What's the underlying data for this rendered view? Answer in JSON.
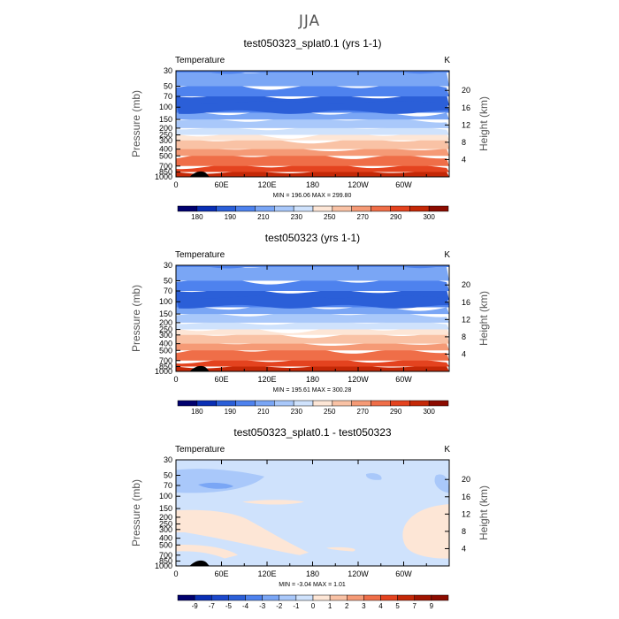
{
  "page_title": "JJA",
  "chart_data": [
    {
      "type": "heatmap",
      "title": "test050323_splat0.1 (yrs 1-1)",
      "left_label": "Temperature",
      "right_label": "K",
      "ylabel": "Pressure (mb)",
      "y2label": "Height (km)",
      "xticks": [
        "0",
        "60E",
        "120E",
        "180",
        "120W",
        "60W"
      ],
      "xtick_lon": [
        0,
        60,
        120,
        180,
        240,
        300
      ],
      "xlim": [
        0,
        360
      ],
      "yticks": [
        "30",
        "50",
        "70",
        "100",
        "150",
        "200",
        "250",
        "300",
        "400",
        "500",
        "700",
        "850",
        "1000"
      ],
      "ytick_values": [
        30,
        50,
        70,
        100,
        150,
        200,
        250,
        300,
        400,
        500,
        700,
        850,
        1000
      ],
      "ylim": [
        1000,
        30
      ],
      "y_scale": "log",
      "y2ticks": [
        "4",
        "8",
        "12",
        "16",
        "20"
      ],
      "y2_values": [
        4,
        8,
        12,
        16,
        20
      ],
      "stats_text": "MIN = 196.06   MAX = 299.80",
      "min": 196.06,
      "max": 299.8,
      "colorbar_labels": [
        "180",
        "190",
        "210",
        "230",
        "250",
        "270",
        "290",
        "300"
      ],
      "colorbar_colors": [
        "#01016e",
        "#0a2fb4",
        "#2b5fd8",
        "#4e82ee",
        "#7aa6f5",
        "#a9c8fa",
        "#cfe2fc",
        "#fde6d6",
        "#f9c2a5",
        "#f59a76",
        "#ef6e48",
        "#e4431f",
        "#c42807",
        "#8c0b00"
      ],
      "field_variant": "control",
      "levels_bottom_up": [
        {
          "p": 1000,
          "c": "#c42807"
        },
        {
          "p": 850,
          "c": "#e4431f"
        },
        {
          "p": 700,
          "c": "#ef6e48"
        },
        {
          "p": 500,
          "c": "#f59a76"
        },
        {
          "p": 400,
          "c": "#f9c2a5"
        },
        {
          "p": 300,
          "c": "#fde6d6"
        },
        {
          "p": 250,
          "c": "#cfe2fc"
        },
        {
          "p": 200,
          "c": "#a9c8fa"
        },
        {
          "p": 150,
          "c": "#7aa6f5"
        },
        {
          "p": 120,
          "c": "#4e82ee"
        },
        {
          "p": 95,
          "c": "#2b5fd8"
        },
        {
          "p": 70,
          "c": "#4e82ee"
        },
        {
          "p": 50,
          "c": "#7aa6f5"
        },
        {
          "p": 30,
          "c": "#4e82ee"
        }
      ]
    },
    {
      "type": "heatmap",
      "title": "test050323 (yrs 1-1)",
      "left_label": "Temperature",
      "right_label": "K",
      "ylabel": "Pressure (mb)",
      "y2label": "Height (km)",
      "xticks": [
        "0",
        "60E",
        "120E",
        "180",
        "120W",
        "60W"
      ],
      "xtick_lon": [
        0,
        60,
        120,
        180,
        240,
        300
      ],
      "xlim": [
        0,
        360
      ],
      "yticks": [
        "30",
        "50",
        "70",
        "100",
        "150",
        "200",
        "250",
        "300",
        "400",
        "500",
        "700",
        "850",
        "1000"
      ],
      "ytick_values": [
        30,
        50,
        70,
        100,
        150,
        200,
        250,
        300,
        400,
        500,
        700,
        850,
        1000
      ],
      "ylim": [
        1000,
        30
      ],
      "y_scale": "log",
      "y2ticks": [
        "4",
        "8",
        "12",
        "16",
        "20"
      ],
      "y2_values": [
        4,
        8,
        12,
        16,
        20
      ],
      "stats_text": "MIN = 195.61   MAX = 300.28",
      "min": 195.61,
      "max": 300.28,
      "colorbar_labels": [
        "180",
        "190",
        "210",
        "230",
        "250",
        "270",
        "290",
        "300"
      ],
      "colorbar_colors": [
        "#01016e",
        "#0a2fb4",
        "#2b5fd8",
        "#4e82ee",
        "#7aa6f5",
        "#a9c8fa",
        "#cfe2fc",
        "#fde6d6",
        "#f9c2a5",
        "#f59a76",
        "#ef6e48",
        "#e4431f",
        "#c42807",
        "#8c0b00"
      ],
      "field_variant": "control",
      "levels_bottom_up": [
        {
          "p": 1000,
          "c": "#c42807"
        },
        {
          "p": 850,
          "c": "#e4431f"
        },
        {
          "p": 700,
          "c": "#ef6e48"
        },
        {
          "p": 500,
          "c": "#f59a76"
        },
        {
          "p": 400,
          "c": "#f9c2a5"
        },
        {
          "p": 300,
          "c": "#fde6d6"
        },
        {
          "p": 250,
          "c": "#cfe2fc"
        },
        {
          "p": 200,
          "c": "#a9c8fa"
        },
        {
          "p": 150,
          "c": "#7aa6f5"
        },
        {
          "p": 120,
          "c": "#4e82ee"
        },
        {
          "p": 95,
          "c": "#2b5fd8"
        },
        {
          "p": 70,
          "c": "#4e82ee"
        },
        {
          "p": 50,
          "c": "#7aa6f5"
        },
        {
          "p": 30,
          "c": "#4e82ee"
        }
      ]
    },
    {
      "type": "heatmap",
      "title": "test050323_splat0.1 - test050323",
      "left_label": "Temperature",
      "right_label": "K",
      "ylabel": "Pressure (mb)",
      "y2label": "Height (km)",
      "xticks": [
        "0",
        "60E",
        "120E",
        "180",
        "120W",
        "60W"
      ],
      "xtick_lon": [
        0,
        60,
        120,
        180,
        240,
        300
      ],
      "xlim": [
        0,
        360
      ],
      "yticks": [
        "30",
        "50",
        "70",
        "100",
        "150",
        "200",
        "250",
        "300",
        "400",
        "500",
        "700",
        "850",
        "1000"
      ],
      "ytick_values": [
        30,
        50,
        70,
        100,
        150,
        200,
        250,
        300,
        400,
        500,
        700,
        850,
        1000
      ],
      "ylim": [
        1000,
        30
      ],
      "y_scale": "log",
      "y2ticks": [
        "4",
        "8",
        "12",
        "16",
        "20"
      ],
      "y2_values": [
        4,
        8,
        12,
        16,
        20
      ],
      "stats_text": "MIN =   -3.04   MAX =    1.01",
      "min": -3.04,
      "max": 1.01,
      "colorbar_labels": [
        "-9",
        "-7",
        "-5",
        "-4",
        "-3",
        "-2",
        "-1",
        "0",
        "1",
        "2",
        "3",
        "4",
        "5",
        "7",
        "9"
      ],
      "colorbar_colors": [
        "#01016e",
        "#0a2fb4",
        "#1c48cc",
        "#2b5fd8",
        "#4e82ee",
        "#7aa6f5",
        "#a9c8fa",
        "#cfe2fc",
        "#fde6d6",
        "#f9c2a5",
        "#f59a76",
        "#ef6e48",
        "#e4431f",
        "#c42807",
        "#a01400",
        "#8c0b00"
      ],
      "field_variant": "difference",
      "background_color": "#cfe2fc"
    }
  ]
}
